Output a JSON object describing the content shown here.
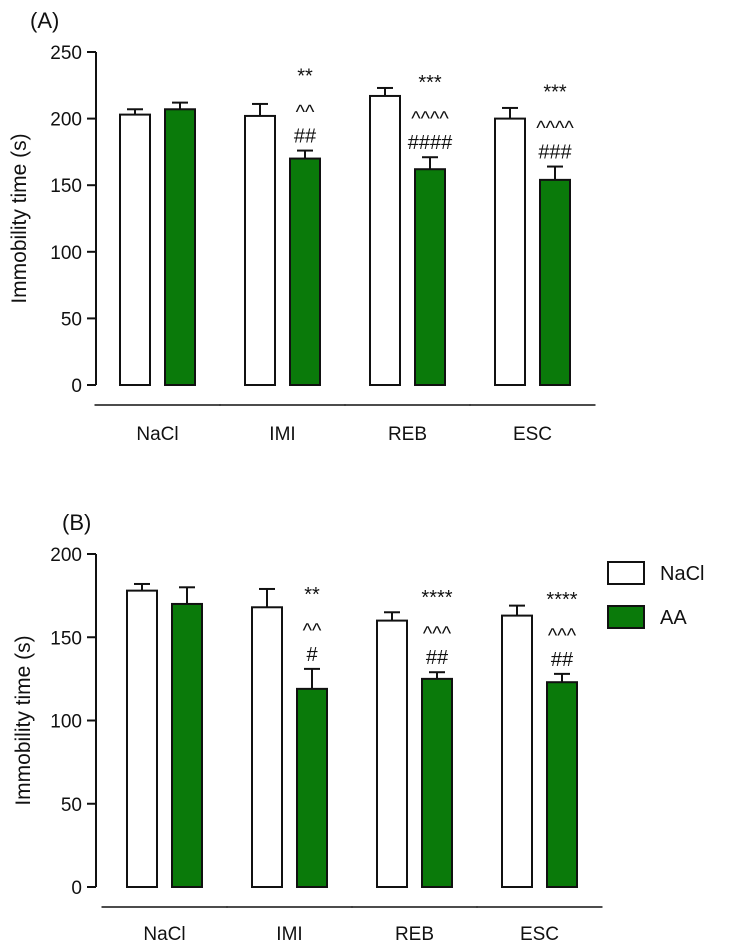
{
  "chart_data": [
    {
      "type": "bar",
      "panel_label": "(A)",
      "ylabel": "Immobility time (s)",
      "xlabel": "",
      "ylim": [
        0,
        250
      ],
      "yticks": [
        0,
        50,
        100,
        150,
        200,
        250
      ],
      "categories": [
        "NaCl",
        "IMI",
        "REB",
        "ESC"
      ],
      "series": [
        {
          "name": "NaCl",
          "color": "#ffffff",
          "values": [
            203,
            202,
            217,
            200
          ],
          "errors": [
            4,
            9,
            6,
            8
          ]
        },
        {
          "name": "AA",
          "color": "#0a7a0a",
          "values": [
            207,
            170,
            162,
            154
          ],
          "errors": [
            5,
            6,
            9,
            10
          ]
        }
      ],
      "significance": [
        [],
        [
          "**",
          "^^",
          "##"
        ],
        [
          "***",
          "^^^^",
          "####"
        ],
        [
          "***",
          "^^^^",
          "###"
        ]
      ]
    },
    {
      "type": "bar",
      "panel_label": "(B)",
      "ylabel": "Immobility time (s)",
      "xlabel": "",
      "ylim": [
        0,
        200
      ],
      "yticks": [
        0,
        50,
        100,
        150,
        200
      ],
      "categories": [
        "NaCl",
        "IMI",
        "REB",
        "ESC"
      ],
      "series": [
        {
          "name": "NaCl",
          "color": "#ffffff",
          "values": [
            178,
            168,
            160,
            163
          ],
          "errors": [
            4,
            11,
            5,
            6
          ]
        },
        {
          "name": "AA",
          "color": "#0a7a0a",
          "values": [
            170,
            119,
            125,
            123
          ],
          "errors": [
            10,
            12,
            4,
            5
          ]
        }
      ],
      "significance": [
        [],
        [
          "**",
          "^^",
          "#"
        ],
        [
          "****",
          "^^^",
          "##"
        ],
        [
          "****",
          "^^^",
          "##"
        ]
      ]
    }
  ],
  "legend": {
    "placement": "right",
    "items": [
      {
        "label": "NaCl",
        "color": "#ffffff"
      },
      {
        "label": "AA",
        "color": "#0a7a0a"
      }
    ]
  }
}
